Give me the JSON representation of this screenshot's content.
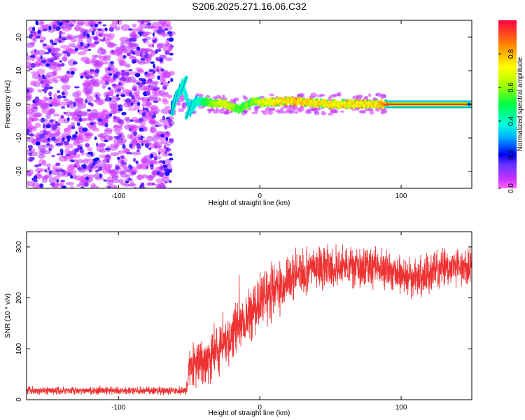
{
  "title": "S206.2025.271.16.06.C32",
  "chart_data": [
    {
      "type": "heatmap",
      "xlabel": "Height of straight line (km)",
      "ylabel": "Frequency (Hz)",
      "xlim": [
        -165,
        150
      ],
      "ylim": [
        -25,
        25
      ],
      "x_ticks": [
        -100,
        0,
        100
      ],
      "x_tick_labels": [
        "-100",
        "0",
        "100"
      ],
      "y_ticks": [
        -20,
        -10,
        0,
        10,
        20
      ],
      "y_tick_labels": [
        "-20",
        "-10",
        "0",
        "10",
        "20"
      ],
      "noise_region_x": [
        -165,
        -62
      ],
      "signal_track": [
        {
          "x": -62,
          "y": 0.0,
          "amp": 0.3
        },
        {
          "x": -55,
          "y": 6.0,
          "amp": 0.4
        },
        {
          "x": -50,
          "y": -2.0,
          "amp": 0.35
        },
        {
          "x": -45,
          "y": 1.0,
          "amp": 0.4
        },
        {
          "x": -35,
          "y": 0.5,
          "amp": 0.6
        },
        {
          "x": -25,
          "y": 0.0,
          "amp": 0.7
        },
        {
          "x": -15,
          "y": -1.5,
          "amp": 0.55
        },
        {
          "x": -5,
          "y": 1.0,
          "amp": 0.6
        },
        {
          "x": 0,
          "y": 0.5,
          "amp": 0.7
        },
        {
          "x": 20,
          "y": 1.0,
          "amp": 0.8
        },
        {
          "x": 50,
          "y": 0.0,
          "amp": 0.75
        },
        {
          "x": 85,
          "y": 0.0,
          "amp": 0.8
        },
        {
          "x": 88,
          "y": 0.0,
          "amp": 0.9
        },
        {
          "x": 150,
          "y": 0.0,
          "amp": 0.95
        }
      ]
    },
    {
      "type": "line",
      "xlabel": "Height of straight line (km)",
      "ylabel": "SNR (10 * v/v)",
      "xlim": [
        -165,
        150
      ],
      "ylim": [
        0,
        330
      ],
      "x_ticks": [
        -100,
        0,
        100
      ],
      "x_tick_labels": [
        "-100",
        "0",
        "100"
      ],
      "y_ticks": [
        0,
        100,
        200,
        300
      ],
      "y_tick_labels": [
        "0",
        "100",
        "200",
        "300"
      ],
      "color": "#ee3333",
      "series": [
        {
          "name": "SNR",
          "envelope_x": [
            -165,
            -52,
            -50,
            -40,
            -30,
            -20,
            -10,
            0,
            10,
            20,
            30,
            40,
            60,
            80,
            100,
            110,
            120,
            130,
            150
          ],
          "envelope_y": [
            18,
            18,
            60,
            75,
            100,
            125,
            160,
            195,
            215,
            235,
            250,
            258,
            262,
            260,
            250,
            240,
            250,
            260,
            262
          ],
          "spread": [
            8,
            8,
            40,
            50,
            55,
            55,
            55,
            55,
            55,
            50,
            45,
            40,
            40,
            40,
            40,
            40,
            40,
            40,
            40
          ]
        }
      ]
    }
  ],
  "colorbar": {
    "label": "Normalized spectral amplitude",
    "ticks": [
      0,
      0.2,
      0.4,
      0.6,
      0.8
    ],
    "tick_labels": [
      "0.0",
      "0.2",
      "0.4",
      "0.6",
      "0.8"
    ],
    "range": [
      0,
      1
    ]
  }
}
